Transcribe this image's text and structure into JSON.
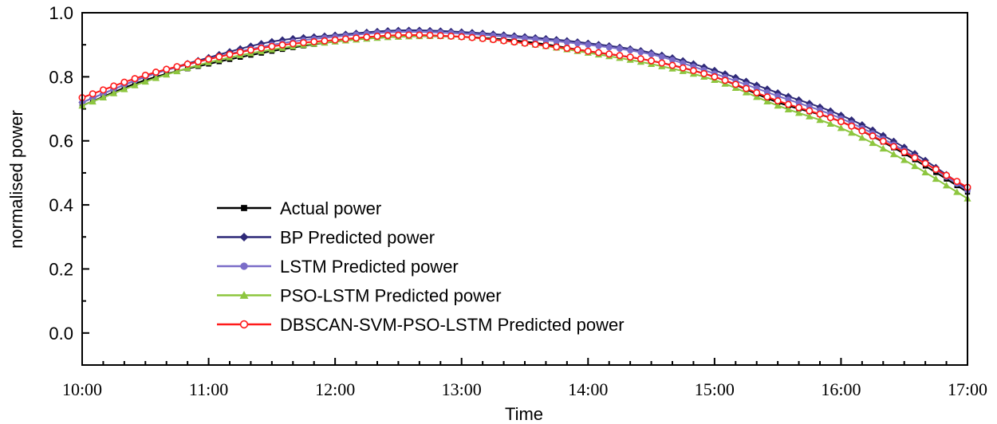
{
  "chart_data": {
    "type": "line",
    "title": "",
    "xlabel": "Time",
    "ylabel": "normalised power",
    "x_tick_labels": [
      "10:00",
      "11:00",
      "12:00",
      "13:00",
      "14:00",
      "15:00",
      "16:00",
      "17:00"
    ],
    "y_tick_labels": [
      "0.0",
      "0.2",
      "0.4",
      "0.6",
      "0.8",
      "1.0"
    ],
    "xlim": [
      10,
      17
    ],
    "ylim": [
      -0.1,
      1.0
    ],
    "legend_position": "bottom-left",
    "x": [
      10.0,
      10.5,
      11.0,
      11.5,
      12.0,
      12.5,
      13.0,
      13.5,
      14.0,
      14.5,
      15.0,
      15.5,
      16.0,
      16.5,
      17.0
    ],
    "series": [
      {
        "name": "Actual power",
        "color": "#000000",
        "marker": "square",
        "values": [
          0.71,
          0.79,
          0.84,
          0.88,
          0.91,
          0.925,
          0.925,
          0.91,
          0.88,
          0.85,
          0.8,
          0.72,
          0.66,
          0.56,
          0.44
        ]
      },
      {
        "name": "BP Predicted power",
        "color": "#2f2a78",
        "marker": "diamond",
        "values": [
          0.72,
          0.8,
          0.86,
          0.91,
          0.93,
          0.945,
          0.94,
          0.925,
          0.905,
          0.875,
          0.82,
          0.75,
          0.68,
          0.58,
          0.45
        ]
      },
      {
        "name": "LSTM Predicted power",
        "color": "#7a6cc8",
        "marker": "circle",
        "values": [
          0.72,
          0.8,
          0.855,
          0.9,
          0.925,
          0.94,
          0.935,
          0.92,
          0.9,
          0.87,
          0.81,
          0.74,
          0.67,
          0.57,
          0.445
        ]
      },
      {
        "name": "PSO-LSTM Predicted power",
        "color": "#8dc63f",
        "marker": "triangle",
        "values": [
          0.71,
          0.785,
          0.845,
          0.885,
          0.91,
          0.925,
          0.925,
          0.905,
          0.875,
          0.84,
          0.79,
          0.71,
          0.64,
          0.54,
          0.42
        ]
      },
      {
        "name": "DBSCAN-SVM-PSO-LSTM Predicted power",
        "color": "#ff1a1a",
        "marker": "circle-open",
        "values": [
          0.735,
          0.805,
          0.855,
          0.895,
          0.915,
          0.93,
          0.925,
          0.905,
          0.88,
          0.85,
          0.8,
          0.725,
          0.66,
          0.565,
          0.455
        ]
      }
    ]
  }
}
